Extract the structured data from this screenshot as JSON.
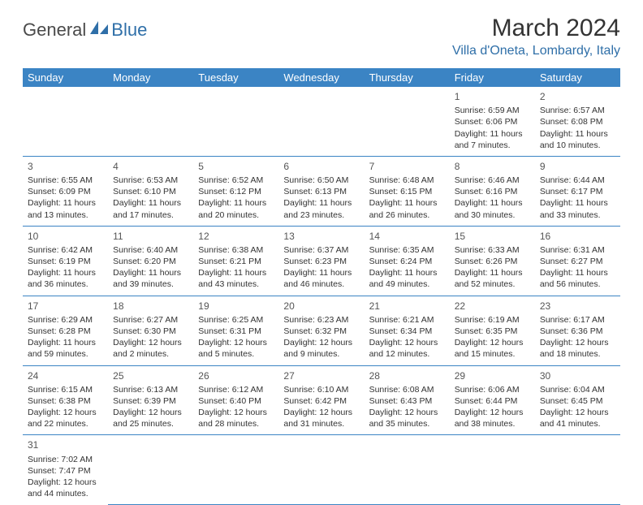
{
  "logo": {
    "dark": "General",
    "blue": "Blue"
  },
  "title": "March 2024",
  "location": "Villa d'Oneta, Lombardy, Italy",
  "colors": {
    "header_bg": "#3b84c4",
    "header_text": "#ffffff",
    "accent": "#2f6fa8",
    "text": "#333333",
    "daynum": "#555555",
    "border": "#3b84c4"
  },
  "typography": {
    "title_fontsize": 30,
    "location_fontsize": 16,
    "th_fontsize": 13,
    "cell_fontsize": 10.5,
    "daynum_fontsize": 12
  },
  "days_of_week": [
    "Sunday",
    "Monday",
    "Tuesday",
    "Wednesday",
    "Thursday",
    "Friday",
    "Saturday"
  ],
  "weeks": [
    [
      null,
      null,
      null,
      null,
      null,
      {
        "n": "1",
        "sr": "Sunrise: 6:59 AM",
        "ss": "Sunset: 6:06 PM",
        "dl": "Daylight: 11 hours and 7 minutes."
      },
      {
        "n": "2",
        "sr": "Sunrise: 6:57 AM",
        "ss": "Sunset: 6:08 PM",
        "dl": "Daylight: 11 hours and 10 minutes."
      }
    ],
    [
      {
        "n": "3",
        "sr": "Sunrise: 6:55 AM",
        "ss": "Sunset: 6:09 PM",
        "dl": "Daylight: 11 hours and 13 minutes."
      },
      {
        "n": "4",
        "sr": "Sunrise: 6:53 AM",
        "ss": "Sunset: 6:10 PM",
        "dl": "Daylight: 11 hours and 17 minutes."
      },
      {
        "n": "5",
        "sr": "Sunrise: 6:52 AM",
        "ss": "Sunset: 6:12 PM",
        "dl": "Daylight: 11 hours and 20 minutes."
      },
      {
        "n": "6",
        "sr": "Sunrise: 6:50 AM",
        "ss": "Sunset: 6:13 PM",
        "dl": "Daylight: 11 hours and 23 minutes."
      },
      {
        "n": "7",
        "sr": "Sunrise: 6:48 AM",
        "ss": "Sunset: 6:15 PM",
        "dl": "Daylight: 11 hours and 26 minutes."
      },
      {
        "n": "8",
        "sr": "Sunrise: 6:46 AM",
        "ss": "Sunset: 6:16 PM",
        "dl": "Daylight: 11 hours and 30 minutes."
      },
      {
        "n": "9",
        "sr": "Sunrise: 6:44 AM",
        "ss": "Sunset: 6:17 PM",
        "dl": "Daylight: 11 hours and 33 minutes."
      }
    ],
    [
      {
        "n": "10",
        "sr": "Sunrise: 6:42 AM",
        "ss": "Sunset: 6:19 PM",
        "dl": "Daylight: 11 hours and 36 minutes."
      },
      {
        "n": "11",
        "sr": "Sunrise: 6:40 AM",
        "ss": "Sunset: 6:20 PM",
        "dl": "Daylight: 11 hours and 39 minutes."
      },
      {
        "n": "12",
        "sr": "Sunrise: 6:38 AM",
        "ss": "Sunset: 6:21 PM",
        "dl": "Daylight: 11 hours and 43 minutes."
      },
      {
        "n": "13",
        "sr": "Sunrise: 6:37 AM",
        "ss": "Sunset: 6:23 PM",
        "dl": "Daylight: 11 hours and 46 minutes."
      },
      {
        "n": "14",
        "sr": "Sunrise: 6:35 AM",
        "ss": "Sunset: 6:24 PM",
        "dl": "Daylight: 11 hours and 49 minutes."
      },
      {
        "n": "15",
        "sr": "Sunrise: 6:33 AM",
        "ss": "Sunset: 6:26 PM",
        "dl": "Daylight: 11 hours and 52 minutes."
      },
      {
        "n": "16",
        "sr": "Sunrise: 6:31 AM",
        "ss": "Sunset: 6:27 PM",
        "dl": "Daylight: 11 hours and 56 minutes."
      }
    ],
    [
      {
        "n": "17",
        "sr": "Sunrise: 6:29 AM",
        "ss": "Sunset: 6:28 PM",
        "dl": "Daylight: 11 hours and 59 minutes."
      },
      {
        "n": "18",
        "sr": "Sunrise: 6:27 AM",
        "ss": "Sunset: 6:30 PM",
        "dl": "Daylight: 12 hours and 2 minutes."
      },
      {
        "n": "19",
        "sr": "Sunrise: 6:25 AM",
        "ss": "Sunset: 6:31 PM",
        "dl": "Daylight: 12 hours and 5 minutes."
      },
      {
        "n": "20",
        "sr": "Sunrise: 6:23 AM",
        "ss": "Sunset: 6:32 PM",
        "dl": "Daylight: 12 hours and 9 minutes."
      },
      {
        "n": "21",
        "sr": "Sunrise: 6:21 AM",
        "ss": "Sunset: 6:34 PM",
        "dl": "Daylight: 12 hours and 12 minutes."
      },
      {
        "n": "22",
        "sr": "Sunrise: 6:19 AM",
        "ss": "Sunset: 6:35 PM",
        "dl": "Daylight: 12 hours and 15 minutes."
      },
      {
        "n": "23",
        "sr": "Sunrise: 6:17 AM",
        "ss": "Sunset: 6:36 PM",
        "dl": "Daylight: 12 hours and 18 minutes."
      }
    ],
    [
      {
        "n": "24",
        "sr": "Sunrise: 6:15 AM",
        "ss": "Sunset: 6:38 PM",
        "dl": "Daylight: 12 hours and 22 minutes."
      },
      {
        "n": "25",
        "sr": "Sunrise: 6:13 AM",
        "ss": "Sunset: 6:39 PM",
        "dl": "Daylight: 12 hours and 25 minutes."
      },
      {
        "n": "26",
        "sr": "Sunrise: 6:12 AM",
        "ss": "Sunset: 6:40 PM",
        "dl": "Daylight: 12 hours and 28 minutes."
      },
      {
        "n": "27",
        "sr": "Sunrise: 6:10 AM",
        "ss": "Sunset: 6:42 PM",
        "dl": "Daylight: 12 hours and 31 minutes."
      },
      {
        "n": "28",
        "sr": "Sunrise: 6:08 AM",
        "ss": "Sunset: 6:43 PM",
        "dl": "Daylight: 12 hours and 35 minutes."
      },
      {
        "n": "29",
        "sr": "Sunrise: 6:06 AM",
        "ss": "Sunset: 6:44 PM",
        "dl": "Daylight: 12 hours and 38 minutes."
      },
      {
        "n": "30",
        "sr": "Sunrise: 6:04 AM",
        "ss": "Sunset: 6:45 PM",
        "dl": "Daylight: 12 hours and 41 minutes."
      }
    ],
    [
      {
        "n": "31",
        "sr": "Sunrise: 7:02 AM",
        "ss": "Sunset: 7:47 PM",
        "dl": "Daylight: 12 hours and 44 minutes."
      },
      null,
      null,
      null,
      null,
      null,
      null
    ]
  ]
}
